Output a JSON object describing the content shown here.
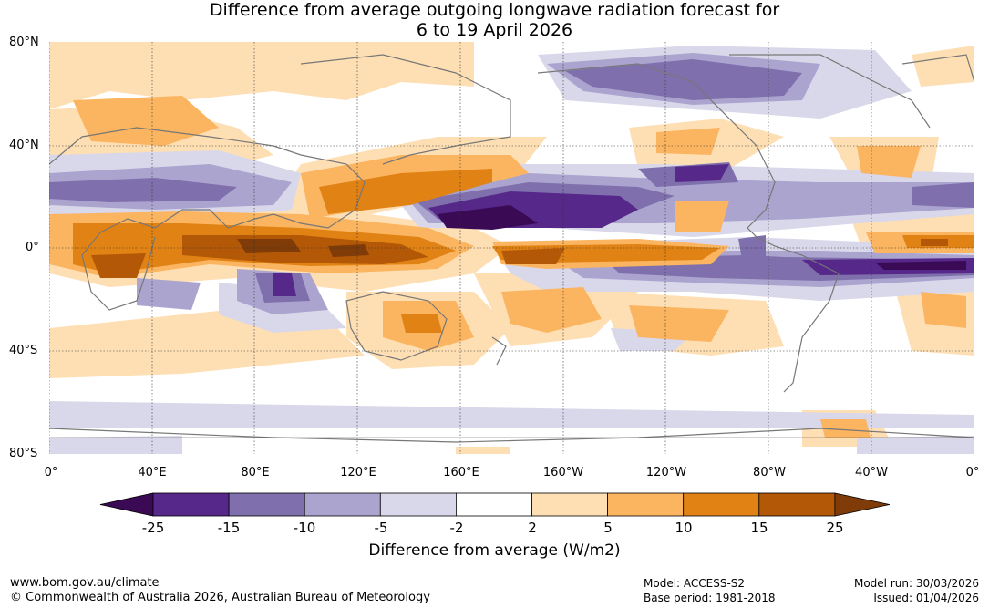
{
  "title_line1": "Difference from average outgoing longwave radiation forecast for",
  "title_line2": "6 to 19 April 2026",
  "lat_labels": [
    "80°N",
    "40°N",
    "0°",
    "40°S",
    "80°S"
  ],
  "lon_labels": [
    "0°",
    "40°E",
    "80°E",
    "120°E",
    "160°E",
    "160°W",
    "120°W",
    "80°W",
    "40°W",
    "0°"
  ],
  "colorbar": {
    "labels": [
      "-25",
      "-15",
      "-10",
      "-5",
      "-2",
      "2",
      "5",
      "10",
      "15",
      "25"
    ],
    "colors": [
      "#3b0a55",
      "#56288a",
      "#7f70ad",
      "#aba4cf",
      "#d8d8ea",
      "#ffffff",
      "#fedfb3",
      "#fbb460",
      "#e08214",
      "#b35806",
      "#7f3b08"
    ],
    "title": "Difference from average (W/m2)"
  },
  "footer": {
    "url": "www.bom.gov.au/climate",
    "copyright": "© Commonwealth of Australia 2026, Australian Bureau of Meteorology",
    "model": "Model: ACCESS-S2",
    "base_period": "Base period: 1981-2018",
    "model_run": "Model run: 30/03/2026",
    "issued": "Issued: 01/04/2026"
  }
}
